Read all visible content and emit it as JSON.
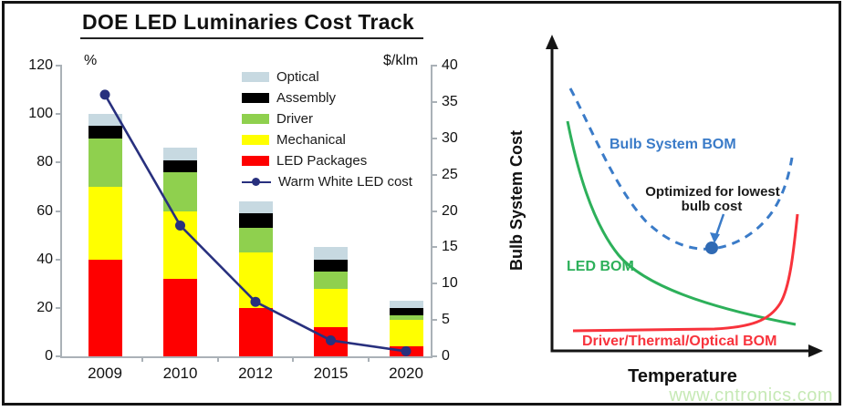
{
  "watermark": "www.cntronics.com",
  "chart_data": [
    {
      "type": "bar",
      "stacked": true,
      "title": "DOE LED Luminaries Cost Track",
      "categories": [
        "2009",
        "2010",
        "2012",
        "2015",
        "2020"
      ],
      "left_axis": {
        "label": "%",
        "ticks": [
          0,
          20,
          40,
          60,
          80,
          100,
          120
        ],
        "max": 120
      },
      "right_axis": {
        "label": "$/klm",
        "ticks": [
          0,
          5,
          10,
          15,
          20,
          25,
          30,
          35,
          40
        ],
        "max": 40
      },
      "series": [
        {
          "name": "LED Packages",
          "color": "#fe0000",
          "values": [
            40,
            32,
            20,
            12,
            4
          ]
        },
        {
          "name": "Mechanical",
          "color": "#ffff00",
          "values": [
            30,
            28,
            23,
            16,
            11
          ]
        },
        {
          "name": "Driver",
          "color": "#8fd04e",
          "values": [
            20,
            16,
            10,
            7,
            2
          ]
        },
        {
          "name": "Assembly",
          "color": "#000000",
          "values": [
            5,
            5,
            6,
            5,
            3
          ]
        },
        {
          "name": "Optical",
          "color": "#c7d9e1",
          "values": [
            5,
            5,
            5,
            5,
            3
          ]
        }
      ],
      "line_series": {
        "name": "Warm White LED cost",
        "color": "#28307e",
        "axis": "right",
        "values": [
          36,
          18,
          7.5,
          2.2,
          0.7
        ]
      },
      "legend_position": "inside-top-right",
      "grid": false
    },
    {
      "type": "line",
      "xlabel": "Temperature",
      "ylabel": "Bulb System Cost",
      "axes_numeric": false,
      "series": [
        {
          "name": "Bulb System BOM",
          "color": "#3a7bc8",
          "style": "dashed",
          "shape": "u-shaped, minimum marked with a dot"
        },
        {
          "name": "LED BOM",
          "color": "#2db05a",
          "style": "solid",
          "shape": "steeply decreasing then flattening"
        },
        {
          "name": "Driver/Thermal/Optical BOM",
          "color": "#f8333c",
          "style": "solid",
          "shape": "flat then rising sharply at high temperature"
        }
      ],
      "annotation_lines": [
        "Optimized for lowest",
        "bulb cost"
      ],
      "annotation_target": "minimum of Bulb System BOM curve"
    }
  ]
}
